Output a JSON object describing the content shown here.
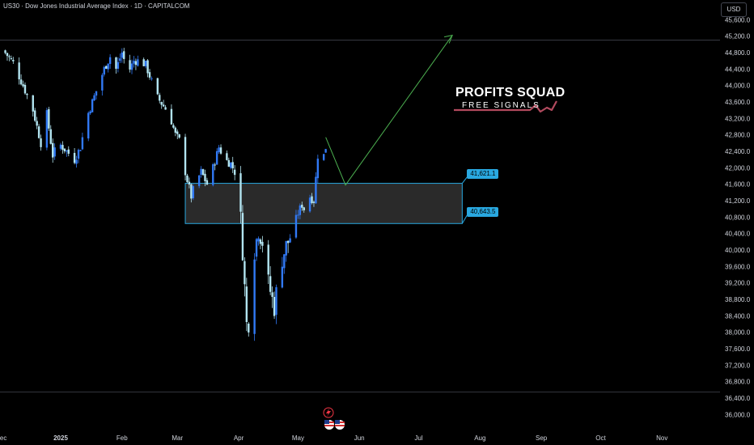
{
  "header": {
    "title": "US30 · Dow Jones Industrial Average Index · 1D · CAPITALCOM",
    "currency": "USD"
  },
  "brand": {
    "name": "PROFITS SQUAD",
    "tagline": "FREE SIGNALS",
    "accent_color": "#b24a5e"
  },
  "colors": {
    "background": "#000000",
    "candle_up": "#3179f5",
    "candle_down": "#b2e4f0",
    "zone_fill": "#2a2a2a",
    "zone_border": "#29a8e0",
    "projection_arrow": "#4caf50",
    "axis_text": "#d1d4dc",
    "grid_line": "#434651",
    "event_icon": "#f23645"
  },
  "icons": [
    "lightning-icon",
    "us-flag-icon"
  ],
  "chart_data": {
    "type": "candlestick",
    "symbol": "US30",
    "timeframe": "1D",
    "y_ticks": [
      45600,
      45200,
      44800,
      44400,
      44000,
      43600,
      43200,
      42800,
      42400,
      42000,
      41600,
      41200,
      40800,
      40400,
      40000,
      39600,
      39200,
      38800,
      38400,
      38000,
      37600,
      37200,
      36800,
      36400,
      36000
    ],
    "y_labels": [
      "45,600.0",
      "45,200.0",
      "44,800.0",
      "44,400.0",
      "44,000.0",
      "43,600.0",
      "43,200.0",
      "42,800.0",
      "42,400.0",
      "42,000.0",
      "41,600.0",
      "41,200.0",
      "40,800.0",
      "40,400.0",
      "40,000.0",
      "39,600.0",
      "39,200.0",
      "38,800.0",
      "38,400.0",
      "38,000.0",
      "37,600.0",
      "37,200.0",
      "36,800.0",
      "36,400.0",
      "36,000.0"
    ],
    "ylim": [
      35850,
      45920
    ],
    "x_labels": [
      {
        "label": "ec",
        "day": -29
      },
      {
        "label": "2025",
        "day": 0
      },
      {
        "label": "Feb",
        "day": 31
      },
      {
        "label": "Mar",
        "day": 59
      },
      {
        "label": "Apr",
        "day": 90
      },
      {
        "label": "May",
        "day": 120
      },
      {
        "label": "Jun",
        "day": 151
      },
      {
        "label": "Jul",
        "day": 181
      },
      {
        "label": "Aug",
        "day": 212
      },
      {
        "label": "Sep",
        "day": 243
      },
      {
        "label": "Oct",
        "day": 273
      },
      {
        "label": "Nov",
        "day": 304
      }
    ],
    "x_bold_labels": [
      "2025"
    ],
    "horizontal_lines": [
      45100,
      36550
    ],
    "zone": {
      "top": 41621.1,
      "bottom": 40643.5,
      "start_day": 63,
      "end_day": 203
    },
    "zone_labels": [
      "41,621.1",
      "40,643.5"
    ],
    "projection": [
      {
        "day": 134,
        "value": 42740
      },
      {
        "day": 144,
        "value": 41580
      },
      {
        "day": 198,
        "value": 45220
      }
    ],
    "price_path": [
      {
        "day": -29,
        "value": 44850
      },
      {
        "day": -24,
        "value": 44550
      },
      {
        "day": -19,
        "value": 44000
      },
      {
        "day": -14,
        "value": 43400
      },
      {
        "day": -10,
        "value": 42600
      },
      {
        "day": -7,
        "value": 43300
      },
      {
        "day": -4,
        "value": 42300
      },
      {
        "day": -1,
        "value": 42600
      },
      {
        "day": 3,
        "value": 42400
      },
      {
        "day": 7,
        "value": 42200
      },
      {
        "day": 10,
        "value": 42500
      },
      {
        "day": 13,
        "value": 43200
      },
      {
        "day": 16,
        "value": 43600
      },
      {
        "day": 19,
        "value": 44000
      },
      {
        "day": 22,
        "value": 44400
      },
      {
        "day": 25,
        "value": 44700
      },
      {
        "day": 28,
        "value": 44400
      },
      {
        "day": 31,
        "value": 44800
      },
      {
        "day": 34,
        "value": 44300
      },
      {
        "day": 37,
        "value": 44600
      },
      {
        "day": 40,
        "value": 44600
      },
      {
        "day": 43,
        "value": 44500
      },
      {
        "day": 46,
        "value": 44100
      },
      {
        "day": 49,
        "value": 43700
      },
      {
        "day": 52,
        "value": 43500
      },
      {
        "day": 55,
        "value": 43300
      },
      {
        "day": 58,
        "value": 42800
      },
      {
        "day": 61,
        "value": 42600
      },
      {
        "day": 63,
        "value": 41900
      },
      {
        "day": 66,
        "value": 41300
      },
      {
        "day": 68,
        "value": 41600
      },
      {
        "day": 71,
        "value": 41900
      },
      {
        "day": 74,
        "value": 41600
      },
      {
        "day": 77,
        "value": 42000
      },
      {
        "day": 80,
        "value": 42500
      },
      {
        "day": 83,
        "value": 42200
      },
      {
        "day": 86,
        "value": 42100
      },
      {
        "day": 88,
        "value": 41900
      },
      {
        "day": 90,
        "value": 41500
      },
      {
        "day": 92,
        "value": 40000
      },
      {
        "day": 94,
        "value": 38200
      },
      {
        "day": 96,
        "value": 38300
      },
      {
        "day": 98,
        "value": 40000
      },
      {
        "day": 100,
        "value": 40500
      },
      {
        "day": 102,
        "value": 40200
      },
      {
        "day": 104,
        "value": 39400
      },
      {
        "day": 106,
        "value": 39000
      },
      {
        "day": 108,
        "value": 38600
      },
      {
        "day": 110,
        "value": 39300
      },
      {
        "day": 112,
        "value": 39800
      },
      {
        "day": 114,
        "value": 40100
      },
      {
        "day": 116,
        "value": 40300
      },
      {
        "day": 118,
        "value": 40600
      },
      {
        "day": 120,
        "value": 40900
      },
      {
        "day": 122,
        "value": 41100
      },
      {
        "day": 124,
        "value": 40900
      },
      {
        "day": 126,
        "value": 41300
      },
      {
        "day": 128,
        "value": 41200
      },
      {
        "day": 130,
        "value": 42300
      },
      {
        "day": 132,
        "value": 42100
      },
      {
        "day": 134,
        "value": 42500
      }
    ]
  }
}
